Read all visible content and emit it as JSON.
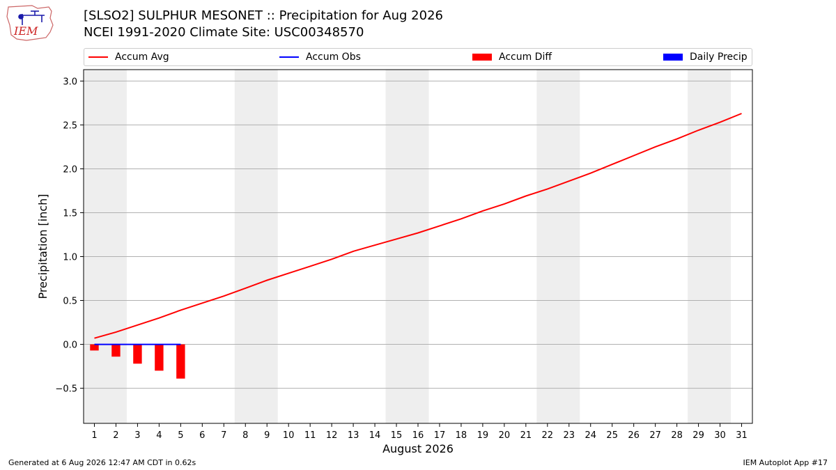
{
  "header": {
    "logo_text": "IEM",
    "title_line1": "[SLSO2] SULPHUR MESONET :: Precipitation for Aug 2026",
    "title_line2": "NCEI 1991-2020 Climate Site: USC00348570"
  },
  "legend": {
    "items": [
      {
        "label": "Accum Avg",
        "color": "#ff0000",
        "kind": "line"
      },
      {
        "label": "Accum Obs",
        "color": "#0000ff",
        "kind": "line"
      },
      {
        "label": "Accum Diff",
        "color": "#ff0000",
        "kind": "box"
      },
      {
        "label": "Daily Precip",
        "color": "#0000ff",
        "kind": "box"
      }
    ]
  },
  "chart_data": {
    "type": "line",
    "xlabel": "August 2026",
    "ylabel": "Precipitation [inch]",
    "x": [
      1,
      2,
      3,
      4,
      5,
      6,
      7,
      8,
      9,
      10,
      11,
      12,
      13,
      14,
      15,
      16,
      17,
      18,
      19,
      20,
      21,
      22,
      23,
      24,
      25,
      26,
      27,
      28,
      29,
      30,
      31
    ],
    "xlim": [
      0.5,
      31.5
    ],
    "ylim": [
      -0.9,
      3.13
    ],
    "yticks": [
      -0.5,
      0.0,
      0.5,
      1.0,
      1.5,
      2.0,
      2.5,
      3.0
    ],
    "ytick_labels": [
      "−0.5",
      "0.0",
      "0.5",
      "1.0",
      "1.5",
      "2.0",
      "2.5",
      "3.0"
    ],
    "grid": "horizontal",
    "weekend_spans": [
      [
        0.5,
        2.5
      ],
      [
        7.5,
        9.5
      ],
      [
        14.5,
        16.5
      ],
      [
        21.5,
        23.5
      ],
      [
        28.5,
        30.5
      ]
    ],
    "series": [
      {
        "name": "Accum Avg",
        "type": "line",
        "color": "#ff0000",
        "x": [
          1,
          2,
          3,
          4,
          5,
          6,
          7,
          8,
          9,
          10,
          11,
          12,
          13,
          14,
          15,
          16,
          17,
          18,
          19,
          20,
          21,
          22,
          23,
          24,
          25,
          26,
          27,
          28,
          29,
          30,
          31
        ],
        "values": [
          0.07,
          0.14,
          0.22,
          0.3,
          0.39,
          0.47,
          0.55,
          0.64,
          0.73,
          0.81,
          0.89,
          0.97,
          1.06,
          1.13,
          1.2,
          1.27,
          1.35,
          1.43,
          1.52,
          1.6,
          1.69,
          1.77,
          1.86,
          1.95,
          2.05,
          2.15,
          2.25,
          2.34,
          2.44,
          2.53,
          2.63
        ]
      },
      {
        "name": "Accum Obs",
        "type": "line",
        "color": "#0000ff",
        "x": [
          1,
          2,
          3,
          4,
          5
        ],
        "values": [
          0.0,
          0.0,
          0.0,
          0.0,
          0.0
        ]
      },
      {
        "name": "Accum Diff",
        "type": "bar",
        "color": "#ff0000",
        "x": [
          1,
          2,
          3,
          4,
          5
        ],
        "values": [
          -0.07,
          -0.14,
          -0.22,
          -0.3,
          -0.39
        ]
      },
      {
        "name": "Daily Precip",
        "type": "bar",
        "color": "#0000ff",
        "x": [
          1,
          2,
          3,
          4,
          5
        ],
        "values": [
          0.0,
          0.0,
          0.0,
          0.0,
          0.0
        ]
      }
    ]
  },
  "footer": {
    "left": "Generated at 6 Aug 2026 12:47 AM CDT in 0.62s",
    "right": "IEM Autoplot App #17"
  }
}
